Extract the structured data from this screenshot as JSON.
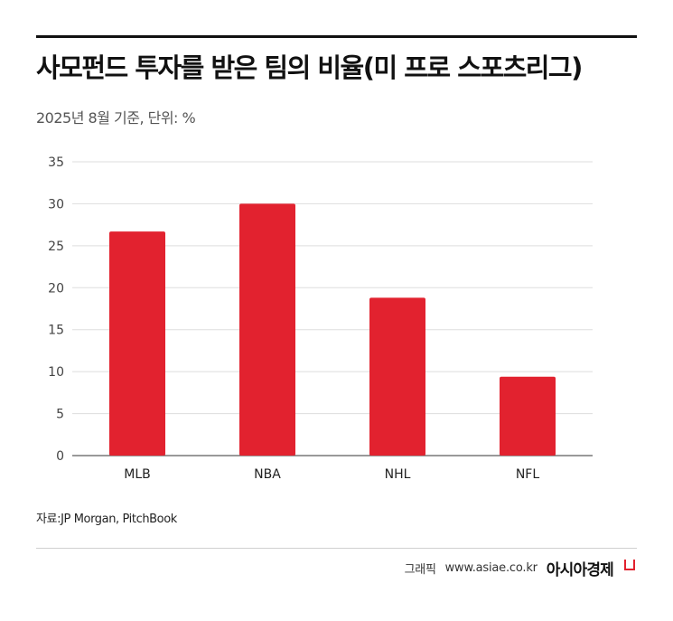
{
  "header": {
    "title": "사모펀드 투자를 받은 팀의 비율(미 프로 스포츠리그)",
    "subtitle": "2025년 8월 기준, 단위: %"
  },
  "chart_data": {
    "type": "bar",
    "categories": [
      "MLB",
      "NBA",
      "NHL",
      "NFL"
    ],
    "values": [
      26.7,
      30.0,
      18.8,
      9.4
    ],
    "ylim": [
      0,
      35
    ],
    "yticks": [
      0,
      5,
      10,
      15,
      20,
      25,
      30,
      35
    ],
    "grid": true,
    "bar_color": "#e2222f",
    "grid_color": "#dddddd"
  },
  "footer": {
    "source": "자료:JP Morgan, PitchBook",
    "credit": "그래픽",
    "site": "www.asiae.co.kr",
    "brand": "아시아경제"
  }
}
